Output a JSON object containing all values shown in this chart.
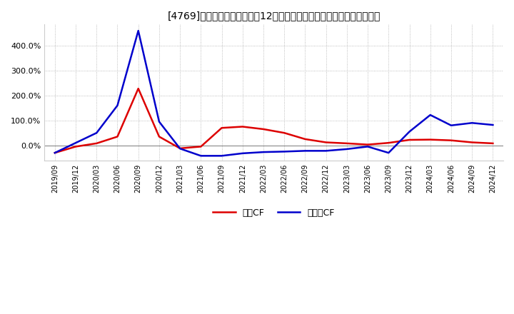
{
  "title": "[4769]　キャッシュフローの12か月移動合計の対前年同期増減率の推移",
  "legend_labels": [
    "営業CF",
    "フリーCF"
  ],
  "line_colors": [
    "#dd0000",
    "#0000cc"
  ],
  "background_color": "#ffffff",
  "plot_bg_color": "#ffffff",
  "grid_color": "#aaaaaa",
  "x_labels": [
    "2019/09",
    "2019/12",
    "2020/03",
    "2020/06",
    "2020/09",
    "2020/12",
    "2021/03",
    "2021/06",
    "2021/09",
    "2021/12",
    "2022/03",
    "2022/06",
    "2022/09",
    "2022/12",
    "2023/03",
    "2023/06",
    "2023/09",
    "2023/12",
    "2024/03",
    "2024/06",
    "2024/09",
    "2024/12"
  ],
  "eigyo_cf": [
    -0.3,
    -0.05,
    0.08,
    0.35,
    2.28,
    0.35,
    -0.12,
    -0.05,
    0.7,
    0.75,
    0.65,
    0.5,
    0.25,
    0.12,
    0.08,
    0.03,
    0.1,
    0.22,
    0.23,
    0.2,
    0.12,
    0.08
  ],
  "free_cf": [
    -0.3,
    0.1,
    0.5,
    1.6,
    4.6,
    0.95,
    -0.13,
    -0.42,
    -0.42,
    -0.32,
    -0.27,
    -0.25,
    -0.22,
    -0.22,
    -0.15,
    -0.05,
    -0.3,
    0.55,
    1.22,
    0.8,
    0.9,
    0.82
  ],
  "ylim": [
    -0.6,
    4.85
  ],
  "yticks": [
    0.0,
    1.0,
    2.0,
    3.0,
    4.0
  ],
  "ytick_labels": [
    "0.0%",
    "100.0%",
    "200.0%",
    "300.0%",
    "400.0%"
  ]
}
